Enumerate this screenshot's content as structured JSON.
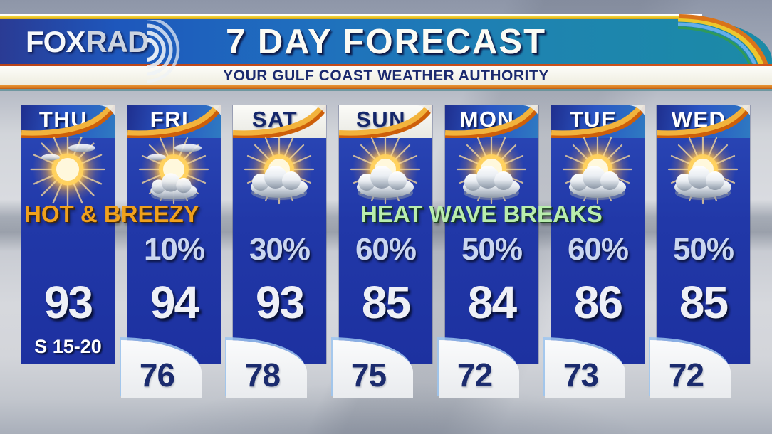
{
  "header": {
    "logo": {
      "fox": "FOX",
      "rad": "RAD",
      "radar_icon": "radar-waves-icon"
    },
    "title": "7 DAY FORECAST",
    "subtitle": "YOUR GULF COAST WEATHER AUTHORITY"
  },
  "annotations": {
    "thu_fri": "HOT & BREEZY",
    "sun_tue": "HEAT WAVE BREAKS"
  },
  "days": [
    {
      "name": "THU",
      "icon": "sunny",
      "precip": "",
      "high": "93",
      "low": "",
      "wind": "S 15-20",
      "weekend": false
    },
    {
      "name": "FRI",
      "icon": "mostly-sunny",
      "precip": "10%",
      "high": "94",
      "low": "76",
      "wind": "",
      "weekend": false
    },
    {
      "name": "SAT",
      "icon": "partly-cloudy",
      "precip": "30%",
      "high": "93",
      "low": "78",
      "wind": "",
      "weekend": true
    },
    {
      "name": "SUN",
      "icon": "partly-cloudy",
      "precip": "60%",
      "high": "85",
      "low": "75",
      "wind": "",
      "weekend": true
    },
    {
      "name": "MON",
      "icon": "partly-cloudy",
      "precip": "50%",
      "high": "84",
      "low": "72",
      "wind": "",
      "weekend": false
    },
    {
      "name": "TUE",
      "icon": "partly-cloudy",
      "precip": "60%",
      "high": "86",
      "low": "73",
      "wind": "",
      "weekend": false
    },
    {
      "name": "WED",
      "icon": "partly-cloudy",
      "precip": "50%",
      "high": "85",
      "low": "72",
      "wind": "",
      "weekend": false
    }
  ],
  "colors": {
    "panel_blue": "#2138a8",
    "header_bar_blue": "#1e57bc",
    "header_bar_teal": "#1b8aa6",
    "swoosh_gold": "#f2b33c",
    "swoosh_orange": "#cd5f0a",
    "hot_breezy_text": "#f0a11c",
    "heat_wave_text": "#b9edad",
    "precip_text": "#cad6f0",
    "high_text": "#eef0f6",
    "low_text": "#1b2b6e",
    "weekend_header_bg": "#f3f3ef",
    "weekend_day_text": "#14266a",
    "day_text": "#ffffff",
    "title_text": "#fbfbf4",
    "subtitle_text": "#1b296e"
  },
  "chart_data": {
    "type": "table",
    "title": "7 DAY FORECAST",
    "subtitle": "YOUR GULF COAST WEATHER AUTHORITY",
    "columns": [
      "day",
      "condition",
      "precip_chance_pct",
      "high_f",
      "low_f",
      "wind"
    ],
    "rows": [
      [
        "THU",
        "sunny",
        null,
        93,
        null,
        "S 15-20"
      ],
      [
        "FRI",
        "mostly sunny",
        10,
        94,
        76,
        ""
      ],
      [
        "SAT",
        "partly cloudy",
        30,
        93,
        78,
        ""
      ],
      [
        "SUN",
        "partly cloudy",
        60,
        85,
        75,
        ""
      ],
      [
        "MON",
        "partly cloudy",
        50,
        84,
        72,
        ""
      ],
      [
        "TUE",
        "partly cloudy",
        60,
        86,
        73,
        ""
      ],
      [
        "WED",
        "partly cloudy",
        50,
        85,
        72,
        ""
      ]
    ],
    "annotations": [
      {
        "text": "HOT & BREEZY",
        "spans_days": [
          "THU",
          "FRI"
        ]
      },
      {
        "text": "HEAT WAVE BREAKS",
        "spans_days": [
          "SUN",
          "MON",
          "TUE"
        ]
      }
    ]
  }
}
